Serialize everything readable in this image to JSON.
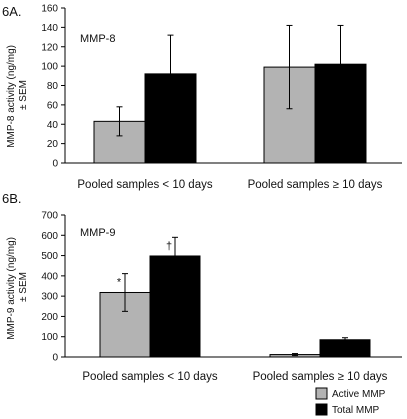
{
  "colors": {
    "active": "#b3b3b3",
    "total": "#000000",
    "axis": "#000000"
  },
  "chart_data": [
    {
      "type": "bar",
      "panel_label": "6A.",
      "inner_label": "MMP-8",
      "ylabel": "MMP-8 activity (ng/mg)\n± SEM",
      "ylim": [
        0,
        160
      ],
      "yticks": [
        0,
        20,
        40,
        60,
        80,
        100,
        120,
        140,
        160
      ],
      "categories": [
        "Pooled samples < 10 days",
        "Pooled samples ≥ 10 days"
      ],
      "series": [
        {
          "name": "Active MMP",
          "values": [
            43,
            99
          ],
          "sem": [
            15,
            43
          ]
        },
        {
          "name": "Total MMP",
          "values": [
            92,
            102
          ],
          "sem": [
            40,
            40
          ]
        }
      ],
      "annotations": [],
      "grid": false
    },
    {
      "type": "bar",
      "panel_label": "6B.",
      "inner_label": "MMP-9",
      "ylabel": "MMP-9 activity (ng/mg)\n± SEM",
      "ylim": [
        0,
        700
      ],
      "yticks": [
        0,
        100,
        200,
        300,
        400,
        500,
        600,
        700
      ],
      "categories": [
        "Pooled samples < 10 days",
        "Pooled samples ≥ 10 days"
      ],
      "series": [
        {
          "name": "Active MMP",
          "values": [
            318,
            12
          ],
          "sem": [
            93,
            5
          ]
        },
        {
          "name": "Total MMP",
          "values": [
            498,
            85
          ],
          "sem": [
            92,
            10
          ]
        }
      ],
      "annotations": [
        {
          "category": 0,
          "series": 0,
          "text": "*"
        },
        {
          "category": 0,
          "series": 1,
          "text": "†"
        }
      ],
      "grid": false
    }
  ],
  "legend": {
    "placement": "bottom-right",
    "items": [
      {
        "label": "Active MMP",
        "series": "active"
      },
      {
        "label": "Total MMP",
        "series": "total"
      }
    ]
  }
}
